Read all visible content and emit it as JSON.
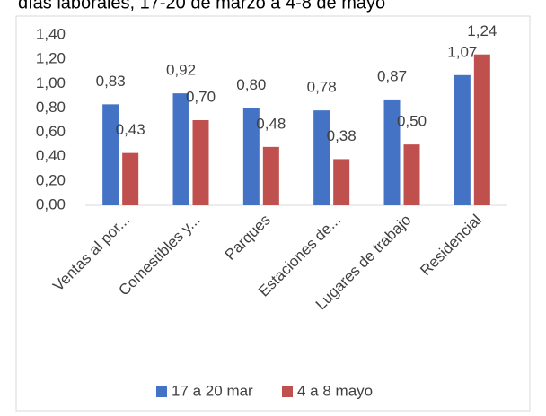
{
  "chart_data": {
    "type": "bar",
    "title": "días laborales, 17-20 de marzo a 4-8 de mayo",
    "categories": [
      "Ventas al por...",
      "Comestibles y...",
      "Parques",
      "Estaciones de...",
      "Lugares de trabajo",
      "Residencial"
    ],
    "series": [
      {
        "name": "17 a 20 mar",
        "color": "#4472c4",
        "values": [
          0.83,
          0.92,
          0.8,
          0.78,
          0.87,
          1.07
        ],
        "value_labels": [
          "0,83",
          "0,92",
          "0,80",
          "0,78",
          "0,87",
          "1,07"
        ]
      },
      {
        "name": "4 a 8 mayo",
        "color": "#c0504d",
        "values": [
          0.43,
          0.7,
          0.48,
          0.38,
          0.5,
          1.24
        ],
        "value_labels": [
          "0,43",
          "0,70",
          "0,48",
          "0,38",
          "0,50",
          "1,24"
        ]
      }
    ],
    "ylim": [
      0,
      1.4
    ],
    "yticks": [
      {
        "value": 0,
        "label": "0,00"
      },
      {
        "value": 0.2,
        "label": "0,20"
      },
      {
        "value": 0.4,
        "label": "0,40"
      },
      {
        "value": 0.6,
        "label": "0,60"
      },
      {
        "value": 0.8,
        "label": "0,80"
      },
      {
        "value": 1.0,
        "label": "1,00"
      },
      {
        "value": 1.2,
        "label": "1,20"
      },
      {
        "value": 1.4,
        "label": "1,40"
      }
    ],
    "grid": false,
    "legend": "bottom"
  }
}
